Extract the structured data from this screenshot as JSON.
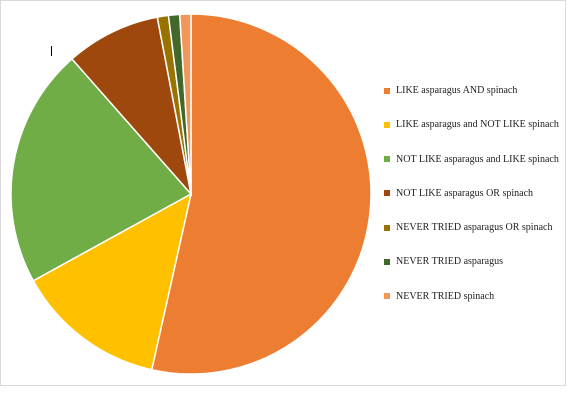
{
  "chart_data": {
    "type": "pie",
    "title": "",
    "categories": [
      "LIKE asparagus AND spinach",
      "LIKE asparagus and NOT LIKE spinach",
      "NOT LIKE asparagus and LIKE spinach",
      "NOT LIKE asparagus OR spinach",
      "NEVER TRIED asparagus OR spinach",
      "NEVER TRIED asparagus",
      "NEVER TRIED spinach"
    ],
    "values": [
      53.5,
      13.5,
      21.5,
      8.5,
      1.0,
      1.0,
      1.0
    ],
    "colors": [
      "#ED7D31",
      "#FFC000",
      "#70AD47",
      "#9E480E",
      "#997300",
      "#43682B",
      "#F1975A"
    ],
    "legend_position": "right"
  }
}
